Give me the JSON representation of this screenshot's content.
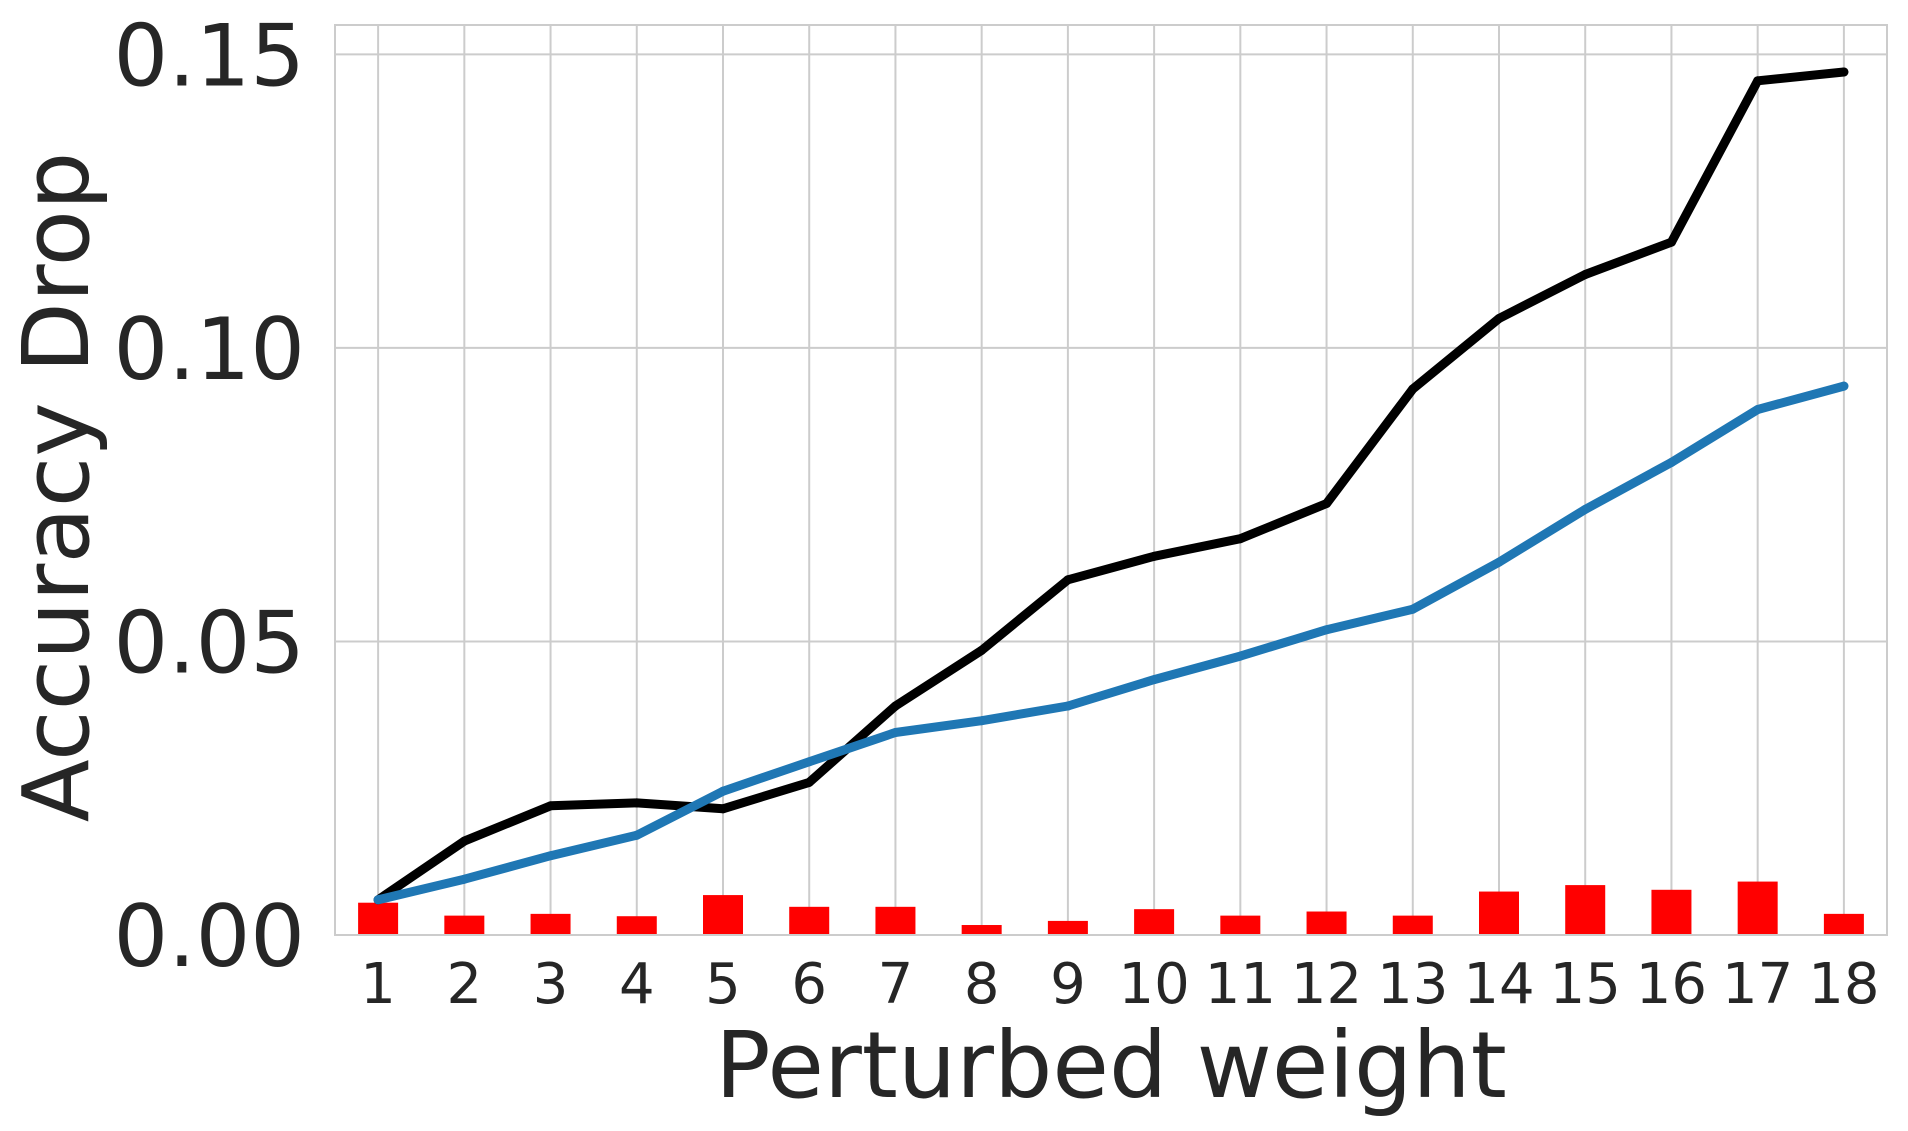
{
  "chart_data": {
    "type": "bar",
    "xlabel": "Perturbed weight",
    "ylabel": "Accuracy Drop",
    "ylim": [
      0.0,
      0.155
    ],
    "xlim": [
      0.5,
      18.5
    ],
    "yticks": [
      0.0,
      0.05,
      0.1,
      0.15
    ],
    "ytick_labels": [
      "0.00",
      "0.05",
      "0.10",
      "0.15"
    ],
    "categories": [
      "1",
      "2",
      "3",
      "4",
      "5",
      "6",
      "7",
      "8",
      "9",
      "10",
      "11",
      "12",
      "13",
      "14",
      "15",
      "16",
      "17",
      "18"
    ],
    "grid": true,
    "legend": "none",
    "series": [
      {
        "type": "line",
        "color": "#000000",
        "values": [
          0.006,
          0.016,
          0.022,
          0.0225,
          0.0215,
          0.026,
          0.039,
          0.0485,
          0.0605,
          0.0645,
          0.0675,
          0.0735,
          0.093,
          0.105,
          0.1125,
          0.118,
          0.1455,
          0.147
        ]
      },
      {
        "type": "line",
        "color": "#1f77b4",
        "values": [
          0.006,
          0.0095,
          0.0135,
          0.017,
          0.0245,
          0.0295,
          0.0345,
          0.0365,
          0.039,
          0.0435,
          0.0475,
          0.052,
          0.0555,
          0.0635,
          0.0725,
          0.0805,
          0.0895,
          0.0935
        ]
      },
      {
        "type": "bar",
        "color": "#ff0000",
        "values": [
          0.0055,
          0.0033,
          0.0036,
          0.0032,
          0.0068,
          0.0048,
          0.0048,
          0.0017,
          0.0024,
          0.0044,
          0.0033,
          0.004,
          0.0033,
          0.0074,
          0.0085,
          0.0077,
          0.0091,
          0.0036
        ]
      }
    ]
  }
}
